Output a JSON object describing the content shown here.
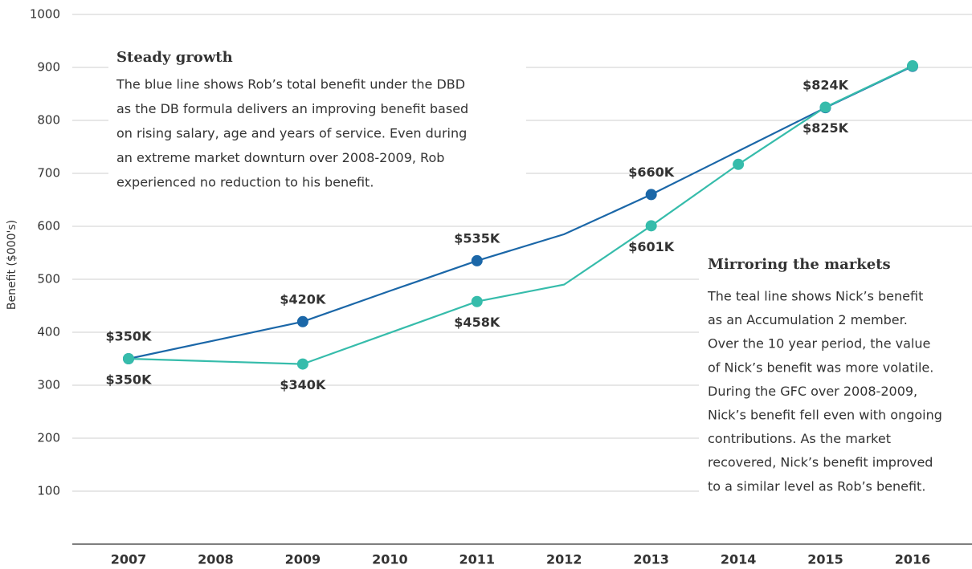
{
  "chart_data": {
    "type": "line",
    "y_label": "Benefit ($000's)",
    "categories": [
      "2007",
      "2008",
      "2009",
      "2010",
      "2011",
      "2012",
      "2013",
      "2014",
      "2015",
      "2016"
    ],
    "ylim": [
      0,
      1000
    ],
    "yticks": [
      100,
      200,
      300,
      400,
      500,
      600,
      700,
      800,
      900,
      1000
    ],
    "grid": true,
    "series": [
      {
        "color": "#1b67a8",
        "values": [
          350,
          385,
          420,
          478,
          535,
          585,
          660,
          742,
          824,
          902
        ],
        "markers": [
          true,
          false,
          true,
          false,
          true,
          false,
          true,
          false,
          true,
          true
        ],
        "value_labels": [
          "$350K",
          null,
          "$420K",
          null,
          "$535K",
          null,
          "$660K",
          null,
          "$824K",
          null
        ],
        "label_side": "above"
      },
      {
        "color": "#36bcab",
        "values": [
          350,
          345,
          340,
          399,
          458,
          490,
          601,
          717,
          825,
          903
        ],
        "markers": [
          true,
          false,
          true,
          false,
          true,
          false,
          true,
          true,
          true,
          true
        ],
        "value_labels": [
          "$350K",
          null,
          "$340K",
          null,
          "$458K",
          null,
          "$601K",
          null,
          "$825K",
          null
        ],
        "label_side": "below"
      }
    ],
    "annotations": [
      {
        "title": "Steady growth",
        "color": "#1b67a8",
        "lines": [
          "The blue line shows Rob’s total benefit under the DBD",
          "as the DB formula delivers an improving benefit based",
          "on rising salary, age and years of service. Even during",
          "an extreme market downturn over 2008-2009, Rob",
          "experienced no reduction to his benefit."
        ]
      },
      {
        "title": "Mirroring the markets",
        "color": "#36bcab",
        "lines": [
          "The teal line shows Nick’s benefit",
          "as an Accumulation 2 member.",
          "Over the 10 year period, the value",
          "of Nick’s benefit was more volatile.",
          "During the GFC over 2008-2009,",
          "Nick’s benefit fell even with ongoing",
          "contributions. As the market",
          "recovered, Nick’s benefit improved",
          "to a similar level as Rob’s benefit."
        ]
      }
    ]
  }
}
